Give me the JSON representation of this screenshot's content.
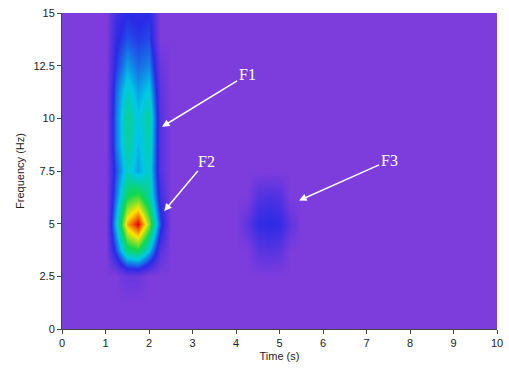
{
  "chart_data": {
    "type": "heatmap",
    "xlabel": "Time (s)",
    "ylabel": "Frequency (Hz)",
    "x": [
      0,
      0.25,
      0.5,
      0.75,
      1,
      1.25,
      1.5,
      1.75,
      2,
      2.25,
      2.5,
      2.75,
      3,
      3.25,
      3.5,
      3.75,
      4,
      4.25,
      4.5,
      4.75,
      5,
      5.25,
      5.5,
      5.75,
      6,
      6.25,
      6.5,
      6.75,
      7,
      7.25,
      7.5,
      7.75,
      8,
      8.25,
      8.5,
      8.75,
      9,
      9.25,
      9.5,
      9.75,
      10
    ],
    "y": [
      0,
      1.25,
      2.5,
      3.75,
      5,
      6.25,
      7.5,
      8.75,
      10,
      11.25,
      12.5,
      13.75,
      15
    ],
    "z": [
      [
        0,
        0,
        0,
        0,
        0,
        0,
        0,
        0,
        0,
        0,
        0,
        0,
        0,
        0,
        0,
        0,
        0,
        0,
        0,
        0,
        0,
        0,
        0,
        0,
        0,
        0,
        0,
        0,
        0,
        0,
        0,
        0,
        0,
        0,
        0,
        0,
        0,
        0,
        0,
        0,
        0
      ],
      [
        0,
        0,
        0,
        0,
        0,
        0,
        0,
        0,
        0,
        0,
        0,
        0,
        0,
        0,
        0,
        0,
        0,
        0,
        0,
        0,
        0,
        0,
        0,
        0,
        0,
        0,
        0,
        0,
        0,
        0,
        0,
        0,
        0,
        0,
        0,
        0,
        0,
        0,
        0,
        0,
        0
      ],
      [
        0,
        0,
        0,
        0,
        0,
        0,
        5,
        5,
        0,
        0,
        0,
        0,
        0,
        0,
        0,
        0,
        0,
        0,
        0,
        0,
        0,
        0,
        0,
        0,
        0,
        0,
        0,
        0,
        0,
        0,
        0,
        0,
        0,
        0,
        0,
        0,
        0,
        0,
        0,
        0,
        0
      ],
      [
        0,
        0,
        0,
        0,
        0,
        25,
        55,
        60,
        40,
        10,
        0,
        0,
        0,
        0,
        0,
        0,
        0,
        0,
        8,
        10,
        8,
        0,
        0,
        0,
        0,
        0,
        0,
        0,
        0,
        0,
        0,
        0,
        0,
        0,
        0,
        0,
        0,
        0,
        0,
        0,
        0
      ],
      [
        0,
        0,
        0,
        0,
        0,
        40,
        85,
        100,
        70,
        25,
        0,
        0,
        0,
        0,
        0,
        0,
        0,
        8,
        18,
        20,
        18,
        8,
        0,
        0,
        0,
        0,
        0,
        0,
        0,
        0,
        0,
        0,
        0,
        0,
        0,
        0,
        0,
        0,
        0,
        0,
        0
      ],
      [
        0,
        0,
        0,
        0,
        0,
        30,
        60,
        65,
        50,
        15,
        0,
        0,
        0,
        0,
        0,
        0,
        0,
        0,
        10,
        12,
        10,
        0,
        0,
        0,
        0,
        0,
        0,
        0,
        0,
        0,
        0,
        0,
        0,
        0,
        0,
        0,
        0,
        0,
        0,
        0,
        0
      ],
      [
        0,
        0,
        0,
        0,
        0,
        25,
        45,
        35,
        45,
        10,
        0,
        0,
        0,
        0,
        0,
        0,
        0,
        0,
        0,
        0,
        0,
        0,
        0,
        0,
        0,
        0,
        0,
        0,
        0,
        0,
        0,
        0,
        0,
        0,
        0,
        0,
        0,
        0,
        0,
        0,
        0
      ],
      [
        0,
        0,
        0,
        0,
        0,
        30,
        50,
        38,
        48,
        10,
        0,
        0,
        0,
        0,
        0,
        0,
        0,
        0,
        0,
        0,
        0,
        0,
        0,
        0,
        0,
        0,
        0,
        0,
        0,
        0,
        0,
        0,
        0,
        0,
        0,
        0,
        0,
        0,
        0,
        0,
        0
      ],
      [
        0,
        0,
        0,
        0,
        0,
        30,
        52,
        40,
        50,
        10,
        0,
        0,
        0,
        0,
        0,
        0,
        0,
        0,
        0,
        0,
        0,
        0,
        0,
        0,
        0,
        0,
        0,
        0,
        0,
        0,
        0,
        0,
        0,
        0,
        0,
        0,
        0,
        0,
        0,
        0,
        0
      ],
      [
        0,
        0,
        0,
        0,
        0,
        28,
        45,
        35,
        42,
        8,
        0,
        0,
        0,
        0,
        0,
        0,
        0,
        0,
        0,
        0,
        0,
        0,
        0,
        0,
        0,
        0,
        0,
        0,
        0,
        0,
        0,
        0,
        0,
        0,
        0,
        0,
        0,
        0,
        0,
        0,
        0
      ],
      [
        0,
        0,
        0,
        0,
        0,
        22,
        35,
        28,
        32,
        5,
        0,
        0,
        0,
        0,
        0,
        0,
        0,
        0,
        0,
        0,
        0,
        0,
        0,
        0,
        0,
        0,
        0,
        0,
        0,
        0,
        0,
        0,
        0,
        0,
        0,
        0,
        0,
        0,
        0,
        0,
        0
      ],
      [
        0,
        0,
        0,
        0,
        0,
        18,
        25,
        22,
        24,
        0,
        0,
        0,
        0,
        0,
        0,
        0,
        0,
        0,
        0,
        0,
        0,
        0,
        0,
        0,
        0,
        0,
        0,
        0,
        0,
        0,
        0,
        0,
        0,
        0,
        0,
        0,
        0,
        0,
        0,
        0,
        0
      ],
      [
        0,
        0,
        0,
        0,
        0,
        15,
        20,
        18,
        20,
        0,
        0,
        0,
        0,
        0,
        0,
        0,
        0,
        0,
        0,
        0,
        0,
        0,
        0,
        0,
        0,
        0,
        0,
        0,
        0,
        0,
        0,
        0,
        0,
        0,
        0,
        0,
        0,
        0,
        0,
        0,
        0
      ]
    ],
    "zlim": [
      0,
      100
    ],
    "colors": [
      "#7d3cdc",
      "#2a2ae6",
      "#00c8e6",
      "#10d850",
      "#ffe600",
      "#e60000"
    ],
    "xlim": [
      0,
      10
    ],
    "xticks": [
      0,
      1,
      2,
      3,
      4,
      5,
      6,
      7,
      8,
      9,
      10
    ],
    "ylim": [
      0,
      15
    ],
    "yticks": [
      0,
      2.5,
      5,
      7.5,
      10,
      12.5,
      15
    ],
    "grid": false,
    "annotations": [
      {
        "text": "F1",
        "x": 2.3,
        "y": 9.6
      },
      {
        "text": "F2",
        "x": 2.35,
        "y": 5.6
      },
      {
        "text": "F3",
        "x": 5.45,
        "y": 6.1
      }
    ]
  }
}
